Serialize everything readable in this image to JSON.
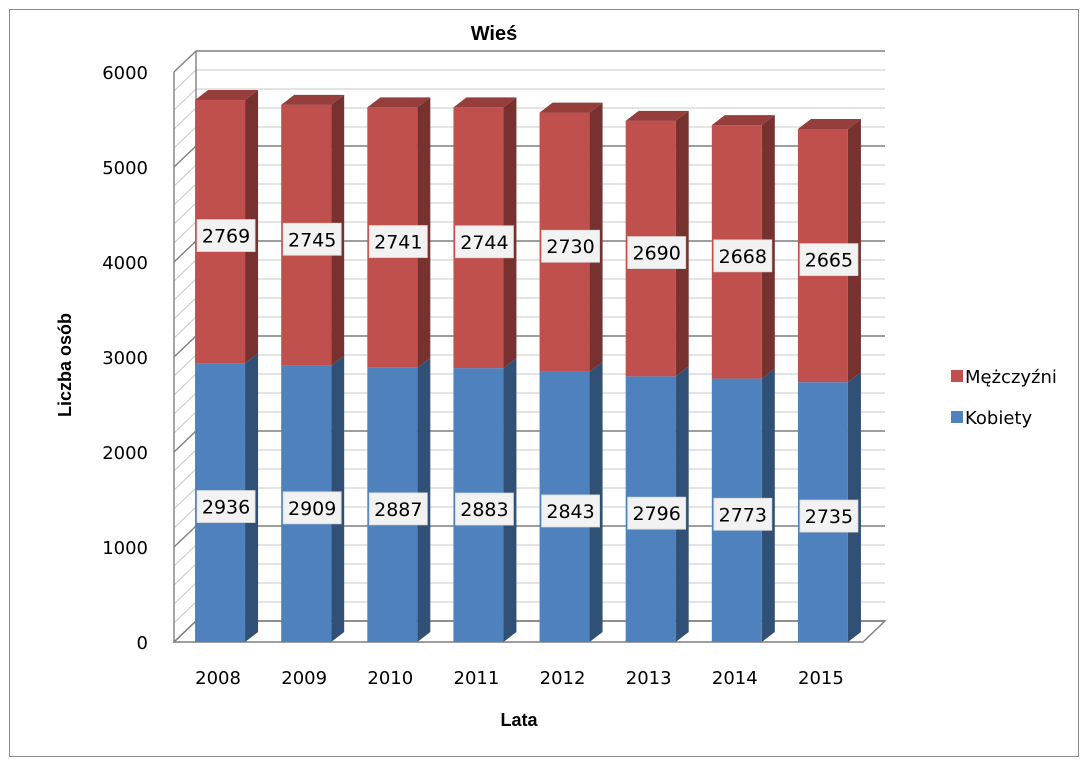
{
  "chart_data": {
    "type": "bar",
    "stacked": true,
    "style": "3d",
    "title": "Wieś",
    "xlabel": "Lata",
    "ylabel": "Liczba osób",
    "categories": [
      "2008",
      "2009",
      "2010",
      "2011",
      "2012",
      "2013",
      "2014",
      "2015"
    ],
    "series": [
      {
        "name": "Kobiety",
        "color": "#4f81bd",
        "values": [
          2936,
          2909,
          2887,
          2883,
          2843,
          2796,
          2773,
          2735
        ]
      },
      {
        "name": "Mężczyźni",
        "color": "#c0504d",
        "values": [
          2769,
          2745,
          2741,
          2744,
          2730,
          2690,
          2668,
          2665
        ]
      }
    ],
    "ylim": [
      0,
      6000
    ],
    "yticks": [
      "0",
      "1000",
      "2000",
      "3000",
      "4000",
      "5000",
      "6000"
    ],
    "grid": true,
    "legend_position": "right"
  }
}
